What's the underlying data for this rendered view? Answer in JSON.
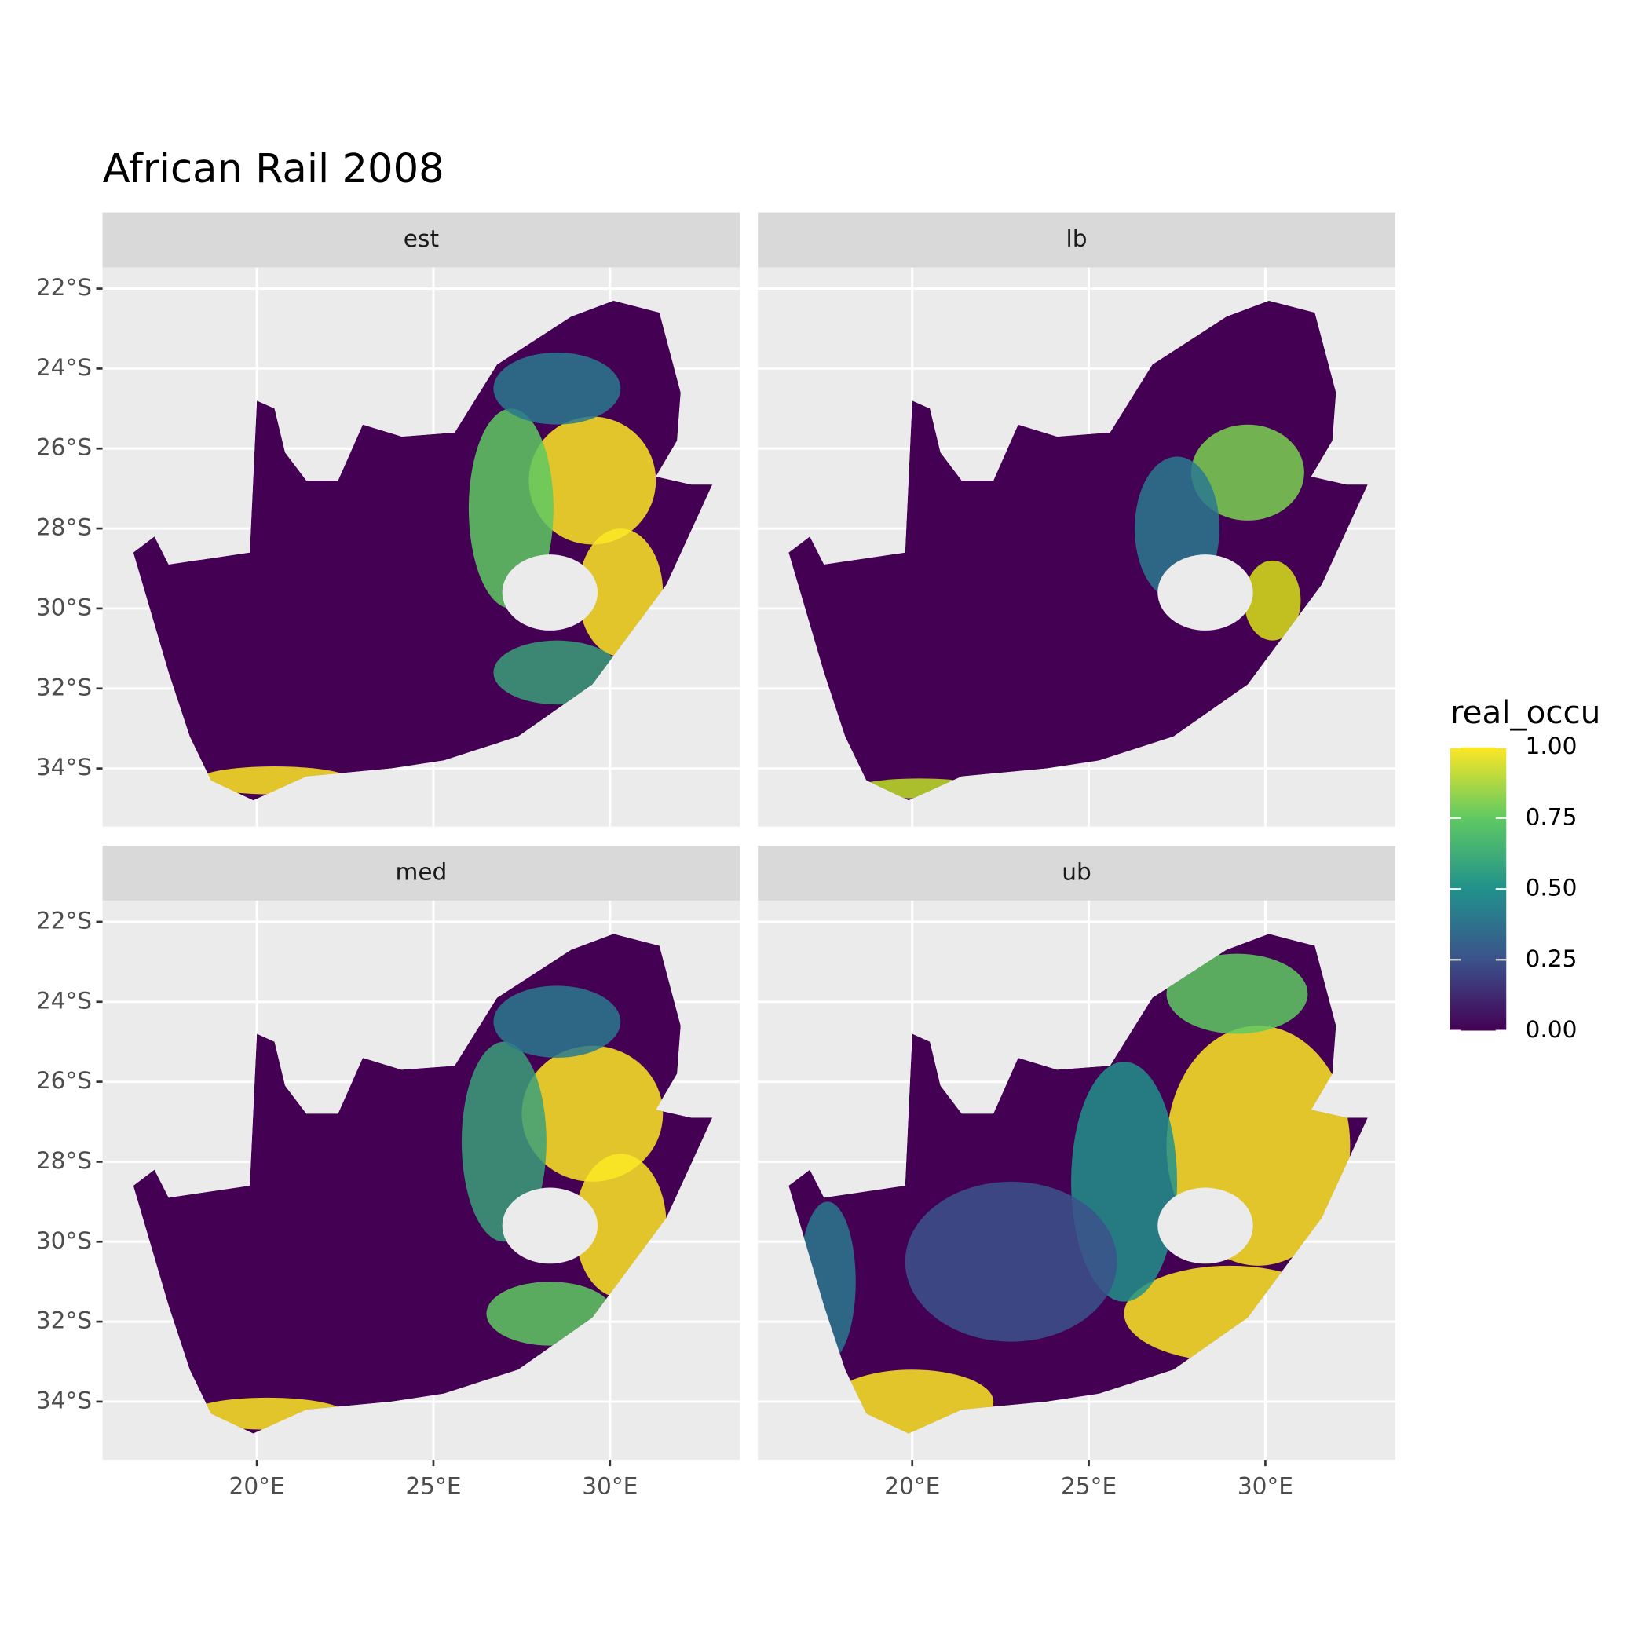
{
  "chart_data": {
    "type": "raster-map",
    "title": "African Rail 2008",
    "facets": [
      "est",
      "lb",
      "med",
      "ub"
    ],
    "xlim": [
      15.63,
      33.68
    ],
    "ylim": [
      -35.455,
      -21.47
    ],
    "xticks": [
      {
        "value": 20,
        "label": "20°E"
      },
      {
        "value": 25,
        "label": "25°E"
      },
      {
        "value": 30,
        "label": "30°E"
      }
    ],
    "yticks": [
      {
        "value": -22,
        "label": "22°S"
      },
      {
        "value": -24,
        "label": "24°S"
      },
      {
        "value": -26,
        "label": "26°S"
      },
      {
        "value": -28,
        "label": "28°S"
      },
      {
        "value": -30,
        "label": "30°S"
      },
      {
        "value": -32,
        "label": "32°S"
      },
      {
        "value": -34,
        "label": "34°S"
      }
    ],
    "grid": true,
    "legend": {
      "title": "real_occu",
      "position": "right",
      "limits": [
        0,
        1
      ],
      "colors": [
        "#440154",
        "#3b528b",
        "#21918c",
        "#5ec962",
        "#fde725"
      ],
      "ticks": [
        {
          "value": 0,
          "label": "0.00"
        },
        {
          "value": 0.25,
          "label": "0.25"
        },
        {
          "value": 0.5,
          "label": "0.50"
        },
        {
          "value": 0.75,
          "label": "0.75"
        },
        {
          "value": 1,
          "label": "1.00"
        }
      ]
    }
  }
}
